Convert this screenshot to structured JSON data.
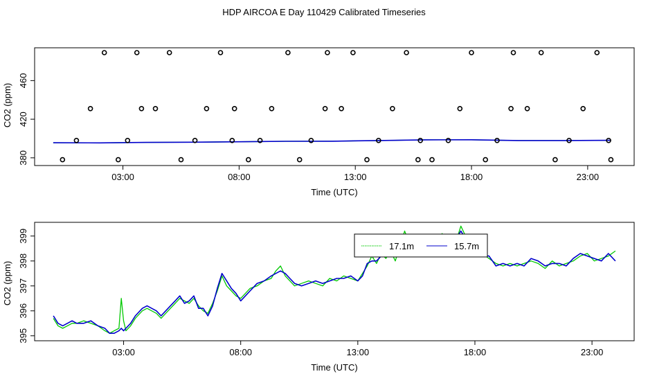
{
  "figure": {
    "title": "HDP AIRCOA E  Day 110429  Calibrated Timeseries"
  },
  "colors": {
    "series_17m": "#00c800",
    "series_157m": "#0000cc",
    "points": "#000000",
    "axis": "#000000"
  },
  "chart_data": [
    {
      "type": "scatter",
      "ylabel": "CO2 (ppm)",
      "xlabel": "Time (UTC)",
      "xlim": [
        -0.8,
        25.0
      ],
      "ylim": [
        372,
        494
      ],
      "xticks": [
        3,
        8,
        13,
        18,
        23
      ],
      "xtick_labels": [
        "03:00",
        "08:00",
        "13:00",
        "18:00",
        "23:00"
      ],
      "yticks": [
        380,
        420,
        460
      ],
      "ytick_labels": [
        "380",
        "420",
        "460"
      ],
      "grid": false,
      "points": {
        "x": [
          0.4,
          1.0,
          1.6,
          2.2,
          2.8,
          3.2,
          3.6,
          3.8,
          4.4,
          5.0,
          5.5,
          6.1,
          6.6,
          7.2,
          7.7,
          7.8,
          8.4,
          8.9,
          9.4,
          10.1,
          10.6,
          11.1,
          11.7,
          11.8,
          12.4,
          12.9,
          13.5,
          14.0,
          14.6,
          15.2,
          15.7,
          15.8,
          16.3,
          17.0,
          17.5,
          18.0,
          18.6,
          19.1,
          19.7,
          19.8,
          20.4,
          21.0,
          21.6,
          22.2,
          22.8,
          23.4,
          23.9,
          24.0
        ],
        "y": [
          378,
          398,
          431,
          489,
          378,
          398,
          489,
          431,
          431,
          489,
          378,
          398,
          431,
          489,
          398,
          431,
          378,
          398,
          431,
          489,
          378,
          398,
          431,
          489,
          431,
          489,
          378,
          398,
          431,
          489,
          378,
          398,
          378,
          398,
          431,
          489,
          378,
          398,
          431,
          489,
          431,
          489,
          378,
          398,
          431,
          489,
          398,
          378
        ]
      },
      "series": [
        {
          "x": [
            0,
            2,
            4,
            6,
            8,
            10,
            12,
            14,
            16,
            18,
            20,
            22,
            24
          ],
          "values": [
            395.6,
            395.5,
            396.0,
            396.2,
            396.6,
            397.1,
            397.2,
            397.8,
            398.6,
            398.6,
            397.9,
            397.9,
            398.1
          ]
        },
        {
          "x": [
            0,
            2,
            4,
            6,
            8,
            10,
            12,
            14,
            16,
            18,
            20,
            22,
            24
          ],
          "values": [
            395.6,
            395.5,
            396.0,
            396.2,
            396.6,
            397.1,
            397.2,
            397.9,
            398.6,
            398.7,
            397.9,
            397.9,
            398.1
          ]
        }
      ]
    },
    {
      "type": "line",
      "ylabel": "CO2 (ppm)",
      "xlabel": "Time (UTC)",
      "xlim": [
        -0.8,
        24.8
      ],
      "ylim": [
        394.8,
        399.55
      ],
      "xticks": [
        3,
        8,
        13,
        18,
        23
      ],
      "xtick_labels": [
        "03:00",
        "08:00",
        "13:00",
        "18:00",
        "23:00"
      ],
      "yticks": [
        395,
        396,
        397,
        398,
        399
      ],
      "ytick_labels": [
        "395",
        "396",
        "397",
        "398",
        "399"
      ],
      "grid": false,
      "legend": "top-center",
      "series": [
        {
          "name": "17.1m",
          "x": [
            0.0,
            0.2,
            0.4,
            0.6,
            0.8,
            1.0,
            1.3,
            1.6,
            1.9,
            2.2,
            2.4,
            2.6,
            2.8,
            2.9,
            3.0,
            3.1,
            3.3,
            3.5,
            3.8,
            4.0,
            4.2,
            4.4,
            4.6,
            4.8,
            5.0,
            5.2,
            5.4,
            5.6,
            5.8,
            6.0,
            6.2,
            6.4,
            6.6,
            6.8,
            7.0,
            7.2,
            7.4,
            7.6,
            7.8,
            8.0,
            8.2,
            8.4,
            8.7,
            9.0,
            9.3,
            9.5,
            9.7,
            9.9,
            10.1,
            10.3,
            10.6,
            10.9,
            11.2,
            11.5,
            11.8,
            12.1,
            12.4,
            12.7,
            13.0,
            13.2,
            13.4,
            13.6,
            13.8,
            14.0,
            14.2,
            14.4,
            14.6,
            14.8,
            15.0,
            15.2,
            15.4,
            15.6,
            15.8,
            16.0,
            16.2,
            16.4,
            16.6,
            16.8,
            17.0,
            17.2,
            17.4,
            17.6,
            17.8,
            18.0,
            18.3,
            18.6,
            18.9,
            19.2,
            19.5,
            19.8,
            20.1,
            20.4,
            20.7,
            21.0,
            21.3,
            21.6,
            21.9,
            22.2,
            22.5,
            22.8,
            23.1,
            23.4,
            23.7,
            24.0
          ],
          "values": [
            395.7,
            395.4,
            395.3,
            395.4,
            395.5,
            395.5,
            395.6,
            395.5,
            395.4,
            395.2,
            395.1,
            395.2,
            395.3,
            396.5,
            395.6,
            395.2,
            395.4,
            395.7,
            396.0,
            396.1,
            396.0,
            395.9,
            395.7,
            395.9,
            396.1,
            396.3,
            396.5,
            396.4,
            396.3,
            396.5,
            396.2,
            396.0,
            395.9,
            396.3,
            396.8,
            397.4,
            397.0,
            396.8,
            396.6,
            396.5,
            396.7,
            396.9,
            397.0,
            397.2,
            397.3,
            397.6,
            397.8,
            397.4,
            397.2,
            397.0,
            397.1,
            397.2,
            397.1,
            397.0,
            397.3,
            397.2,
            397.4,
            397.3,
            397.2,
            397.5,
            397.8,
            398.2,
            397.9,
            398.3,
            398.1,
            398.4,
            398.0,
            398.6,
            399.2,
            398.7,
            398.6,
            398.2,
            398.3,
            398.5,
            398.7,
            398.6,
            399.1,
            398.4,
            398.6,
            398.8,
            399.4,
            399.0,
            398.6,
            398.4,
            398.3,
            398.1,
            397.9,
            397.8,
            397.9,
            397.8,
            397.9,
            398.0,
            397.9,
            397.7,
            398.0,
            397.8,
            397.9,
            398.0,
            398.2,
            398.3,
            398.0,
            398.1,
            398.2,
            398.4
          ]
        },
        {
          "name": "15.7m",
          "x": [
            0.0,
            0.2,
            0.4,
            0.6,
            0.8,
            1.0,
            1.3,
            1.6,
            1.9,
            2.2,
            2.4,
            2.6,
            2.8,
            2.9,
            3.0,
            3.1,
            3.3,
            3.5,
            3.8,
            4.0,
            4.2,
            4.4,
            4.6,
            4.8,
            5.0,
            5.2,
            5.4,
            5.6,
            5.8,
            6.0,
            6.2,
            6.4,
            6.6,
            6.8,
            7.0,
            7.2,
            7.4,
            7.6,
            7.8,
            8.0,
            8.2,
            8.4,
            8.7,
            9.0,
            9.3,
            9.5,
            9.7,
            9.9,
            10.1,
            10.3,
            10.6,
            10.9,
            11.2,
            11.5,
            11.8,
            12.1,
            12.4,
            12.7,
            13.0,
            13.2,
            13.4,
            13.6,
            13.8,
            14.0,
            14.2,
            14.4,
            14.6,
            14.8,
            15.0,
            15.2,
            15.4,
            15.6,
            15.8,
            16.0,
            16.2,
            16.4,
            16.6,
            16.8,
            17.0,
            17.2,
            17.4,
            17.6,
            17.8,
            18.0,
            18.3,
            18.6,
            18.9,
            19.2,
            19.5,
            19.8,
            20.1,
            20.4,
            20.7,
            21.0,
            21.3,
            21.6,
            21.9,
            22.2,
            22.5,
            22.8,
            23.1,
            23.4,
            23.7,
            24.0
          ],
          "values": [
            395.8,
            395.5,
            395.4,
            395.5,
            395.6,
            395.5,
            395.5,
            395.6,
            395.4,
            395.3,
            395.1,
            395.1,
            395.2,
            395.3,
            395.2,
            395.3,
            395.5,
            395.8,
            396.1,
            396.2,
            396.1,
            396.0,
            395.8,
            396.0,
            396.2,
            396.4,
            396.6,
            396.3,
            396.4,
            396.6,
            396.1,
            396.1,
            395.8,
            396.2,
            396.9,
            397.5,
            397.2,
            396.9,
            396.7,
            396.4,
            396.6,
            396.8,
            397.1,
            397.2,
            397.4,
            397.5,
            397.6,
            397.5,
            397.3,
            397.1,
            397.0,
            397.1,
            397.2,
            397.1,
            397.2,
            397.3,
            397.3,
            397.4,
            397.2,
            397.4,
            397.9,
            398.0,
            398.0,
            398.2,
            398.2,
            398.3,
            398.2,
            398.5,
            398.9,
            398.8,
            398.5,
            398.4,
            398.2,
            398.6,
            398.5,
            398.7,
            399.0,
            398.2,
            398.7,
            398.9,
            399.2,
            398.9,
            398.6,
            398.5,
            398.2,
            398.2,
            397.8,
            397.9,
            397.8,
            397.9,
            397.8,
            398.1,
            398.0,
            397.8,
            397.9,
            397.9,
            397.8,
            398.1,
            398.3,
            398.2,
            398.1,
            398.0,
            398.3,
            398.0
          ]
        }
      ]
    }
  ]
}
